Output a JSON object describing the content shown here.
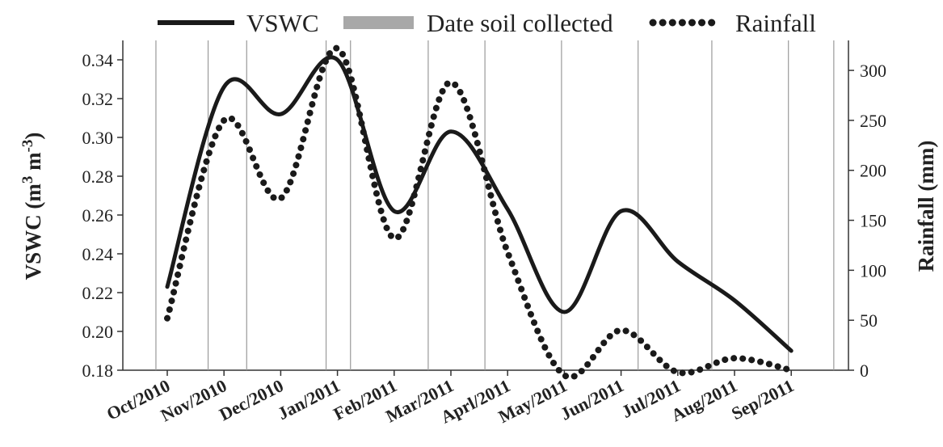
{
  "chart_data": {
    "type": "line",
    "title": "",
    "legend": {
      "placement": "top",
      "entries": [
        {
          "label": "VSWC",
          "style": "solid"
        },
        {
          "label": "Date soil collected",
          "style": "gray-bar"
        },
        {
          "label": "Rainfall",
          "style": "dotted"
        }
      ]
    },
    "categories": [
      "Oct/2010",
      "Nov/2010",
      "Dec/2010",
      "Jan/2011",
      "Feb/2011",
      "Mar/2011",
      "Aprl/2011",
      "May/2011",
      "Jun/2011",
      "Jul/2011",
      "Aug/2011",
      "Sep/2011"
    ],
    "y_left": {
      "label_main": "VSWC (m",
      "label_sup1": "3",
      "label_mid": " m",
      "label_sup2": "-3",
      "label_end": ")",
      "min": 0.18,
      "max": 0.35,
      "ticks": [
        "0.18",
        "0.20",
        "0.22",
        "0.24",
        "0.26",
        "0.28",
        "0.30",
        "0.32",
        "0.34"
      ]
    },
    "y_right": {
      "label": "Rainfall (mm)",
      "min": 0,
      "max": 330,
      "ticks": [
        "0",
        "50",
        "100",
        "150",
        "200",
        "250",
        "300"
      ]
    },
    "series": [
      {
        "name": "VSWC",
        "axis": "left",
        "color": "#1a1a1a",
        "style": "solid",
        "values": [
          0.223,
          0.326,
          0.312,
          0.34,
          0.262,
          0.303,
          0.263,
          0.21,
          0.262,
          0.236,
          0.216,
          0.19
        ]
      },
      {
        "name": "Rainfall",
        "axis": "right",
        "color": "#1a1a1a",
        "style": "dotted",
        "values": [
          52,
          250,
          172,
          322,
          132,
          288,
          118,
          -5,
          40,
          -2,
          12,
          0
        ]
      }
    ],
    "soil_collection_positions": [
      -0.2,
      0.72,
      1.4,
      2.8,
      3.23,
      4.6,
      5.6,
      6.95,
      8.3,
      9.6,
      10.95,
      11.75
    ],
    "grid": false,
    "colors": {
      "line": "#1a1a1a",
      "collection_line": "#9a9a9a",
      "axis": "#333333"
    }
  }
}
